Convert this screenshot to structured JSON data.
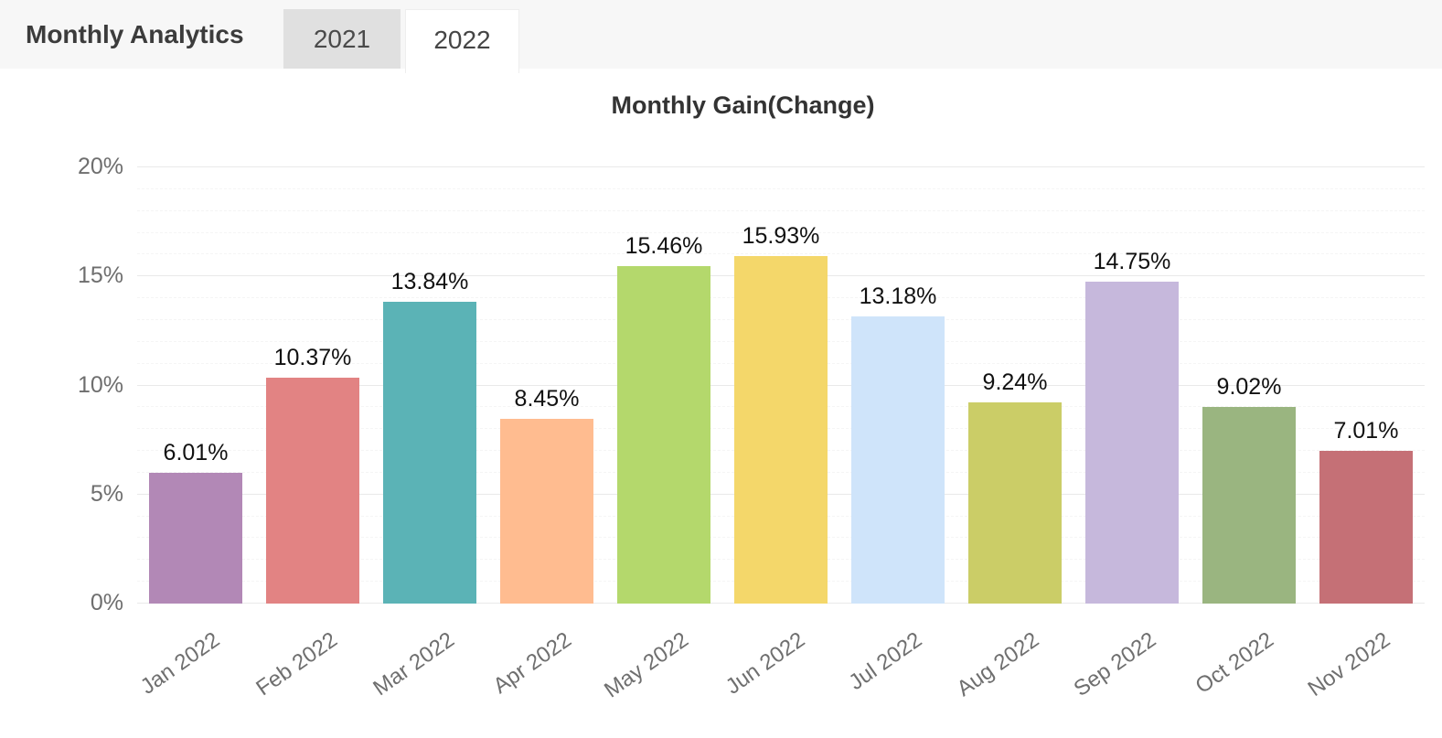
{
  "header": {
    "title": "Monthly Analytics",
    "tabs": [
      {
        "label": "2021",
        "active": false
      },
      {
        "label": "2022",
        "active": true
      }
    ]
  },
  "chart_data": {
    "type": "bar",
    "title": "Monthly Gain(Change)",
    "categories": [
      "Jan 2022",
      "Feb 2022",
      "Mar 2022",
      "Apr 2022",
      "May 2022",
      "Jun 2022",
      "Jul 2022",
      "Aug 2022",
      "Sep 2022",
      "Oct 2022",
      "Nov 2022"
    ],
    "values": [
      6.01,
      10.37,
      13.84,
      8.45,
      15.46,
      15.93,
      13.18,
      9.24,
      14.75,
      9.02,
      7.01
    ],
    "value_labels": [
      "6.01%",
      "10.37%",
      "13.84%",
      "8.45%",
      "15.46%",
      "15.93%",
      "13.18%",
      "9.24%",
      "14.75%",
      "9.02%",
      "7.01%"
    ],
    "bar_colors": [
      "#b288b6",
      "#e28383",
      "#5bb3b6",
      "#ffbc90",
      "#b4d86c",
      "#f4d76a",
      "#cfe4fa",
      "#cbcd67",
      "#c6b8dc",
      "#9ab580",
      "#c57076"
    ],
    "xlabel": "",
    "ylabel": "",
    "ylim": [
      0,
      20
    ],
    "y_major_step": 5,
    "y_minor_step": 1,
    "y_tick_labels": [
      "0%",
      "5%",
      "10%",
      "15%",
      "20%"
    ],
    "grid": true,
    "legend": "none"
  },
  "colors": {
    "header_bg": "#f7f7f7",
    "tab_inactive_bg": "#e0e0e0",
    "tab_active_bg": "#ffffff",
    "title_text": "#333333",
    "axis_text": "#6e6e6e",
    "value_label_text": "#111111",
    "grid_major": "#e9e9e9",
    "grid_minor": "#f5f5f5"
  }
}
